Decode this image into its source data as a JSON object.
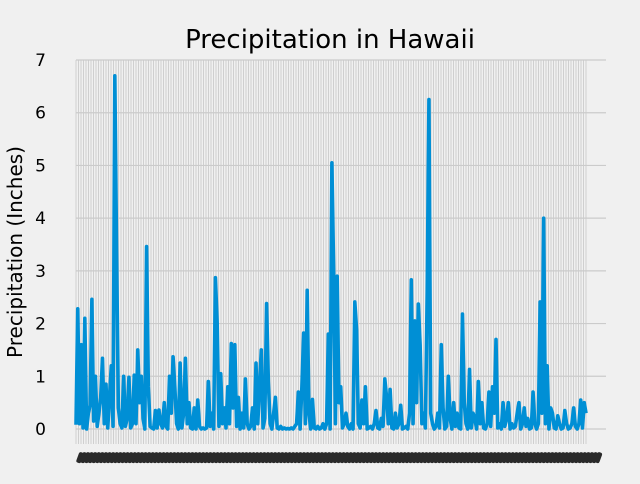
{
  "chart_data": {
    "type": "line",
    "title": "Precipitation in Hawaii",
    "xlabel": "",
    "ylabel": "Precipitation (Inches)",
    "ylim": [
      -0.3,
      7
    ],
    "yticks": [
      0,
      1,
      2,
      3,
      4,
      5,
      6,
      7
    ],
    "grid": true,
    "legend": "none",
    "colors": {
      "background": "#f0f0f0",
      "grid": "#cbcbcb",
      "line": "#008fd5",
      "text": "#000000"
    },
    "xticks_note": "dense overlapping date tick labels (illegible)",
    "series": [
      {
        "values": [
          0.08,
          2.28,
          0.1,
          1.6,
          0.02,
          2.1,
          0.0,
          0.3,
          0.45,
          2.46,
          0.15,
          1.0,
          0.05,
          0.3,
          0.6,
          1.34,
          0.1,
          0.85,
          0.02,
          0.6,
          1.2,
          0.05,
          6.7,
          3.35,
          0.4,
          0.1,
          0.02,
          1.0,
          0.05,
          0.2,
          0.98,
          0.02,
          0.1,
          1.02,
          0.1,
          1.5,
          0.5,
          1.0,
          0.2,
          0.0,
          3.46,
          0.8,
          0.05,
          0.02,
          0.0,
          0.35,
          0.02,
          0.36,
          0.1,
          0.02,
          0.5,
          0.05,
          0.0,
          1.0,
          0.3,
          1.37,
          0.8,
          0.1,
          0.0,
          1.25,
          0.02,
          0.3,
          1.34,
          0.1,
          0.5,
          0.02,
          0.0,
          0.4,
          0.0,
          0.55,
          0.05,
          0.0,
          0.02,
          0.0,
          0.02,
          0.9,
          0.05,
          0.3,
          0.0,
          2.87,
          2.0,
          0.05,
          1.05,
          0.1,
          0.4,
          0.02,
          0.8,
          0.1,
          1.62,
          0.4,
          1.6,
          0.05,
          0.6,
          0.0,
          0.3,
          0.02,
          0.95,
          0.1,
          0.0,
          0.05,
          0.4,
          0.0,
          1.25,
          0.1,
          0.8,
          1.5,
          0.02,
          0.2,
          2.38,
          0.9,
          0.1,
          0.0,
          0.3,
          0.6,
          0.02,
          0.0,
          0.05,
          0.0,
          0.02,
          0.0,
          0.01,
          0.0,
          0.02,
          0.0,
          0.05,
          0.1,
          0.7,
          0.0,
          0.8,
          1.82,
          0.1,
          2.63,
          0.3,
          0.0,
          0.56,
          0.02,
          0.0,
          0.05,
          0.0,
          0.02,
          0.1,
          0.0,
          0.1,
          1.8,
          0.0,
          5.05,
          3.0,
          0.1,
          2.9,
          0.5,
          0.8,
          0.02,
          0.1,
          0.3,
          0.05,
          0.0,
          0.1,
          0.0,
          2.41,
          1.88,
          0.1,
          0.02,
          0.55,
          0.1,
          0.8,
          0.0,
          0.02,
          0.05,
          0.0,
          0.1,
          0.35,
          0.02,
          0.0,
          0.2,
          0.05,
          0.95,
          0.6,
          0.1,
          0.75,
          0.02,
          0.0,
          0.3,
          0.02,
          0.1,
          0.45,
          0.0,
          0.02,
          0.05,
          0.0,
          0.3,
          2.83,
          0.1,
          2.05,
          0.5,
          2.37,
          1.6,
          0.1,
          0.3,
          0.02,
          2.6,
          6.25,
          0.3,
          0.1,
          0.0,
          0.05,
          0.3,
          0.02,
          1.6,
          0.4,
          0.0,
          0.05,
          1.0,
          0.2,
          0.0,
          0.5,
          0.05,
          0.3,
          0.02,
          0.0,
          2.18,
          0.5,
          0.1,
          0.0,
          1.13,
          0.02,
          0.3,
          0.2,
          0.0,
          0.9,
          0.1,
          0.5,
          0.02,
          0.0,
          0.1,
          0.7,
          0.05,
          0.8,
          0.3,
          1.7,
          0.02,
          0.1,
          0.0,
          0.5,
          0.05,
          0.2,
          0.5,
          0.0,
          0.1,
          0.02,
          0.05,
          0.3,
          0.5,
          0.0,
          0.1,
          0.4,
          0.05,
          0.2,
          0.0,
          0.02,
          0.7,
          0.1,
          0.0,
          0.1,
          2.41,
          0.3,
          4.0,
          0.1,
          1.2,
          0.0,
          0.4,
          0.3,
          0.02,
          0.0,
          0.25,
          0.1,
          0.0,
          0.02,
          0.35,
          0.1,
          0.0,
          0.02,
          0.1,
          0.4,
          0.05,
          0.0,
          0.1,
          0.55,
          0.02,
          0.5,
          0.3
        ]
      }
    ]
  }
}
